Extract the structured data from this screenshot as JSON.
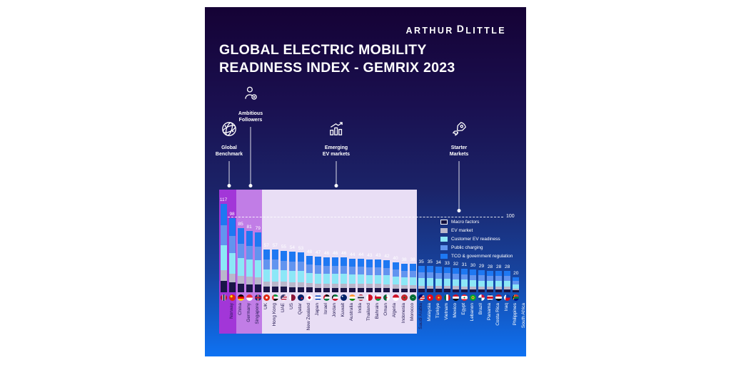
{
  "brand": {
    "logo_left": "ARTHUR",
    "logo_d": "D",
    "logo_right": "LITTLE"
  },
  "title": {
    "line1": "GLOBAL ELECTRIC MOBILITY",
    "line2": "READINESS INDEX - GEMRIX 2023"
  },
  "axis": {
    "reference_value": 100,
    "reference_label": "100"
  },
  "colors": {
    "card_top": "#150235",
    "card_bottom": "#0e72f3",
    "band_global_benchmark": "#a236d8",
    "band_ambitious_followers": "#c17de6",
    "band_emerging_ev_markets": "#e9def5",
    "segments": [
      "#191547",
      "#b9b7cb",
      "#8ce7f7",
      "#6294ef",
      "#1e78f2"
    ],
    "label_on_band": "#241a52",
    "label_on_dark": "#ffffff"
  },
  "categories": [
    {
      "id": "global-benchmark",
      "label_lines": [
        "Global",
        "Benchmark"
      ],
      "icon": "globe-icon",
      "band_color": "#a236d8"
    },
    {
      "id": "ambitious-followers",
      "label_lines": [
        "Ambitious",
        "Followers"
      ],
      "icon": "person-plus-icon",
      "band_color": "#c17de6"
    },
    {
      "id": "emerging-ev-markets",
      "label_lines": [
        "Emerging",
        "EV markets"
      ],
      "icon": "growth-chart-icon",
      "band_color": "#e9def5"
    },
    {
      "id": "starter-markets",
      "label_lines": [
        "Starter",
        "Markets"
      ],
      "icon": "rocket-icon",
      "band_color": null
    }
  ],
  "legend": {
    "items": [
      {
        "label": "Macro factors",
        "color": "#13103f",
        "outlined": true
      },
      {
        "label": "EV market",
        "color": "#b9b7cb",
        "outlined": false
      },
      {
        "label": "Customer EV readiness",
        "color": "#8ce7f7",
        "outlined": false
      },
      {
        "label": "Public charging",
        "color": "#6294ef",
        "outlined": false
      },
      {
        "label": "TCO & government regulation",
        "color": "#1e78f2",
        "outlined": false
      }
    ]
  },
  "chart_data": {
    "type": "bar",
    "stacked": true,
    "title": "GLOBAL ELECTRIC MOBILITY READINESS INDEX - GEMRIX 2023",
    "ylim": [
      0,
      120
    ],
    "reference_line": 100,
    "series_order": [
      "Macro factors",
      "EV market",
      "Customer EV readiness",
      "Public charging",
      "TCO & government regulation"
    ],
    "segment_fractions": [
      0.13,
      0.12,
      0.28,
      0.23,
      0.24
    ],
    "countries": [
      {
        "name": "Norway",
        "value": 117,
        "group_id": "global-benchmark",
        "flag_css": "linear-gradient(90deg,#ba0c2f 30%,#fff 30% 40%,#00205b 40% 60%,#fff 60% 70%,#ba0c2f 70%)"
      },
      {
        "name": "China",
        "value": 98,
        "group_id": "global-benchmark",
        "flag_css": "radial-gradient(circle at 35% 30%,#ffde00 18%,#de2910 20%)"
      },
      {
        "name": "Germany",
        "value": 85,
        "group_id": "ambitious-followers",
        "flag_css": "linear-gradient(#000 33%,#dd0000 33% 66%,#ffce00 66%)"
      },
      {
        "name": "Singapore",
        "value": 81,
        "group_id": "ambitious-followers",
        "flag_css": "linear-gradient(#ed2939 50%,#fff 50%)"
      },
      {
        "name": "UK",
        "value": 79,
        "group_id": "ambitious-followers",
        "flag_css": "linear-gradient(0deg,rgba(0,0,0,0) 40%,#c8102e 40% 60%,rgba(0,0,0,0) 60%),linear-gradient(90deg,#012169 40%,#fff 40% 45%,#c8102e 45% 55%,#fff 55% 60%,#012169 60%)"
      },
      {
        "name": "Hong Kong",
        "value": 57,
        "group_id": "emerging-ev-markets",
        "flag_css": "radial-gradient(circle,#fff 22%,#de2910 24%)"
      },
      {
        "name": "UAE",
        "value": 57,
        "group_id": "emerging-ev-markets",
        "flag_css": "linear-gradient(90deg,#ef3340 28%,rgba(0,0,0,0) 28%),linear-gradient(#009739 33%,#fff 33% 66%,#000 66%)"
      },
      {
        "name": "US",
        "value": 55,
        "group_id": "emerging-ev-markets",
        "flag_css": "linear-gradient(135deg,#3c3b6e 40%,rgba(0,0,0,0) 40%),repeating-linear-gradient(#b31942 0 1.5px,#fff 1.5px 3px)"
      },
      {
        "name": "Qatar",
        "value": 54,
        "group_id": "emerging-ev-markets",
        "flag_css": "linear-gradient(90deg,#fff 32%,#8a1538 32%)"
      },
      {
        "name": "New Zealand",
        "value": 53,
        "group_id": "emerging-ev-markets",
        "flag_css": "radial-gradient(circle at 65% 60%,#c8102e 15%,rgba(0,0,0,0) 17%),linear-gradient(#012169,#012169)"
      },
      {
        "name": "Japan",
        "value": 48,
        "group_id": "emerging-ev-markets",
        "flag_css": "radial-gradient(circle,#bc002d 28%,#fff 30%)"
      },
      {
        "name": "Israel",
        "value": 47,
        "group_id": "emerging-ev-markets",
        "flag_css": "linear-gradient(#fff 18%,#0038b8 18% 32%,#fff 32% 68%,#0038b8 68% 82%,#fff 82%)"
      },
      {
        "name": "Jordan",
        "value": 46,
        "group_id": "emerging-ev-markets",
        "flag_css": "linear-gradient(110deg,#ce1126 28%,rgba(0,0,0,0) 28%),linear-gradient(#000 33%,#fff 33% 66%,#007a3d 66%)"
      },
      {
        "name": "Kuwait",
        "value": 46,
        "group_id": "emerging-ev-markets",
        "flag_css": "linear-gradient(110deg,#000 25%,rgba(0,0,0,0) 25%),linear-gradient(#007a3d 33%,#fff 33% 66%,#ce1126 66%)"
      },
      {
        "name": "Australia",
        "value": 46,
        "group_id": "emerging-ev-markets",
        "flag_css": "radial-gradient(circle at 30% 30%,#fff 10%,rgba(0,0,0,0) 12%),linear-gradient(#012169,#012169)"
      },
      {
        "name": "India",
        "value": 44,
        "group_id": "emerging-ev-markets",
        "flag_css": "linear-gradient(#ff9933 33%,#fff 33% 66%,#138808 66%)"
      },
      {
        "name": "Thailand",
        "value": 44,
        "group_id": "emerging-ev-markets",
        "flag_css": "linear-gradient(#a51931 18%,#f4f5f8 18% 38%,#2d2a4a 38% 62%,#f4f5f8 62% 82%,#a51931 82%)"
      },
      {
        "name": "Bahrain",
        "value": 43,
        "group_id": "emerging-ev-markets",
        "flag_css": "linear-gradient(90deg,#fff 32%,#ce1126 32%)"
      },
      {
        "name": "Oman",
        "value": 43,
        "group_id": "emerging-ev-markets",
        "flag_css": "linear-gradient(90deg,#ce1126 25%,rgba(0,0,0,0) 25%),linear-gradient(#fff 33%,#ce1126 33% 66%,#009a3e 66%)"
      },
      {
        "name": "Algeria",
        "value": 42,
        "group_id": "emerging-ev-markets",
        "flag_css": "radial-gradient(circle,#ce1126 15%,rgba(0,0,0,0) 17%),linear-gradient(90deg,#006233 50%,#fff 50%)"
      },
      {
        "name": "Indonesia",
        "value": 40,
        "group_id": "emerging-ev-markets",
        "flag_css": "linear-gradient(#ce1126 50%,#fff 50%)"
      },
      {
        "name": "Morocco",
        "value": 38,
        "group_id": "emerging-ev-markets",
        "flag_css": "radial-gradient(circle,#006233 15%,rgba(0,0,0,0) 17%),linear-gradient(#c1272d,#c1272d)"
      },
      {
        "name": "Saudi Arabia",
        "value": 38,
        "group_id": "emerging-ev-markets",
        "flag_css": "radial-gradient(circle,#fff 8%,rgba(0,0,0,0) 10%),linear-gradient(#006c35,#006c35)"
      },
      {
        "name": "Malaysia",
        "value": 35,
        "group_id": "starter-markets",
        "flag_css": "linear-gradient(135deg,#010066 42%,rgba(0,0,0,0) 42%),repeating-linear-gradient(#cc0001 0 1.5px,#fff 1.5px 3px)"
      },
      {
        "name": "Türkiye",
        "value": 35,
        "group_id": "starter-markets",
        "flag_css": "radial-gradient(circle at 45% 50%,#fff 16%,#e30a17 18%)"
      },
      {
        "name": "Vietnam",
        "value": 34,
        "group_id": "starter-markets",
        "flag_css": "radial-gradient(circle,#ffff00 16%,#da251d 18%)"
      },
      {
        "name": "Mexico",
        "value": 33,
        "group_id": "starter-markets",
        "flag_css": "linear-gradient(90deg,#006847 33%,#fff 33% 66%,#ce1126 66%)"
      },
      {
        "name": "Egypt",
        "value": 32,
        "group_id": "starter-markets",
        "flag_css": "linear-gradient(#ce1126 33%,#fff 33% 66%,#000 66%)"
      },
      {
        "name": "Lebanon",
        "value": 31,
        "group_id": "starter-markets",
        "flag_css": "radial-gradient(circle,#007a3d 14%,rgba(0,0,0,0) 16%),linear-gradient(#ed1c24 25%,#fff 25% 75%,#ed1c24 75%)"
      },
      {
        "name": "Brazil",
        "value": 30,
        "group_id": "starter-markets",
        "flag_css": "radial-gradient(circle,#002776 12%,rgba(0,0,0,0) 14%),radial-gradient(circle,#fedf00 30%,rgba(0,0,0,0) 32%),linear-gradient(#009c3b,#009c3b)"
      },
      {
        "name": "Panama",
        "value": 29,
        "group_id": "starter-markets",
        "flag_css": "conic-gradient(#d21034 0 25%,#fff 25% 50%,#005293 50% 75%,#fff 75%)"
      },
      {
        "name": "Costa Rica",
        "value": 28,
        "group_id": "starter-markets",
        "flag_css": "linear-gradient(#002b7f 18%,#fff 18% 36%,#ce1126 36% 64%,#fff 64% 82%,#002b7f 82%)"
      },
      {
        "name": "Iraq",
        "value": 28,
        "group_id": "starter-markets",
        "flag_css": "linear-gradient(#ce1126 33%,#fff 33% 66%,#000 66%)"
      },
      {
        "name": "Philippines",
        "value": 28,
        "group_id": "starter-markets",
        "flag_css": "linear-gradient(100deg,#fff 30%,rgba(0,0,0,0) 30%),linear-gradient(#0038a8 50%,#ce1126 50%)"
      },
      {
        "name": "South Africa",
        "value": 20,
        "group_id": "starter-markets",
        "flag_css": "linear-gradient(100deg,#000 20%,#ffb612 20% 28%,rgba(0,0,0,0) 28%),linear-gradient(#e03c31 33%,#007749 33% 66%,#001489 66%)"
      }
    ]
  }
}
